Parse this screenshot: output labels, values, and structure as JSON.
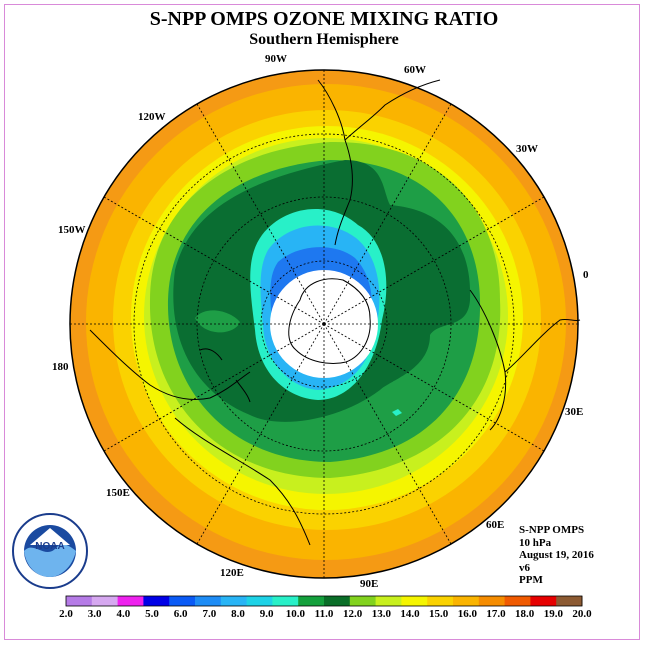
{
  "title": "S-NPP OMPS OZONE MIXING RATIO",
  "subtitle": "Southern Hemisphere",
  "info": {
    "instrument": "S-NPP OMPS",
    "level": "10 hPa",
    "date": "August 19, 2016",
    "version": "v6",
    "units": "PPM"
  },
  "logo": {
    "text": "NOAA",
    "ring_text": "NATIONAL OCEANIC AND ATMOSPHERIC ADMINISTRATION · U.S. DEPARTMENT OF COMMERCE"
  },
  "longitude_labels": [
    {
      "label": "90W"
    },
    {
      "label": "60W"
    },
    {
      "label": "30W"
    },
    {
      "label": "0"
    },
    {
      "label": "30E"
    },
    {
      "label": "60E"
    },
    {
      "label": "90E"
    },
    {
      "label": "120E"
    },
    {
      "label": "150E"
    },
    {
      "label": "180"
    },
    {
      "label": "150W"
    },
    {
      "label": "120W"
    }
  ],
  "colorbar": {
    "ticks": [
      "2.0",
      "3.0",
      "4.0",
      "5.0",
      "6.0",
      "7.0",
      "8.0",
      "9.0",
      "10.0",
      "11.0",
      "12.0",
      "13.0",
      "14.0",
      "15.0",
      "16.0",
      "17.0",
      "18.0",
      "19.0",
      "20.0"
    ],
    "colors": [
      "#b57be6",
      "#d6a8f0",
      "#ee22ee",
      "#0000e6",
      "#0a5af5",
      "#1e8cf5",
      "#28b4f5",
      "#1ed2e6",
      "#28f0c8",
      "#14a03c",
      "#0a6e28",
      "#82d21e",
      "#c8f01e",
      "#f5f500",
      "#fad200",
      "#fab400",
      "#f58c00",
      "#f05a00",
      "#e60000",
      "#8c5a32"
    ]
  },
  "map_levels": {
    "outer_to_inner": [
      "17.0",
      "16.0",
      "15.0",
      "14.0",
      "13.0",
      "12.0",
      "11.0",
      "10.0",
      "9.0",
      "8.0",
      "7.0"
    ],
    "colors": {
      "17.0": "#f59a14",
      "16.0": "#fab400",
      "15.0": "#fad200",
      "14.0": "#f5f500",
      "13.0": "#c8f01e",
      "12.0": "#82d21e",
      "11.0": "#1e9e46",
      "10.0": "#0a6e32",
      "9.0": "#28f0c8",
      "8.0": "#28b4f5",
      "7.0": "#1e78f0",
      "land_polar": "#ffffff"
    }
  }
}
